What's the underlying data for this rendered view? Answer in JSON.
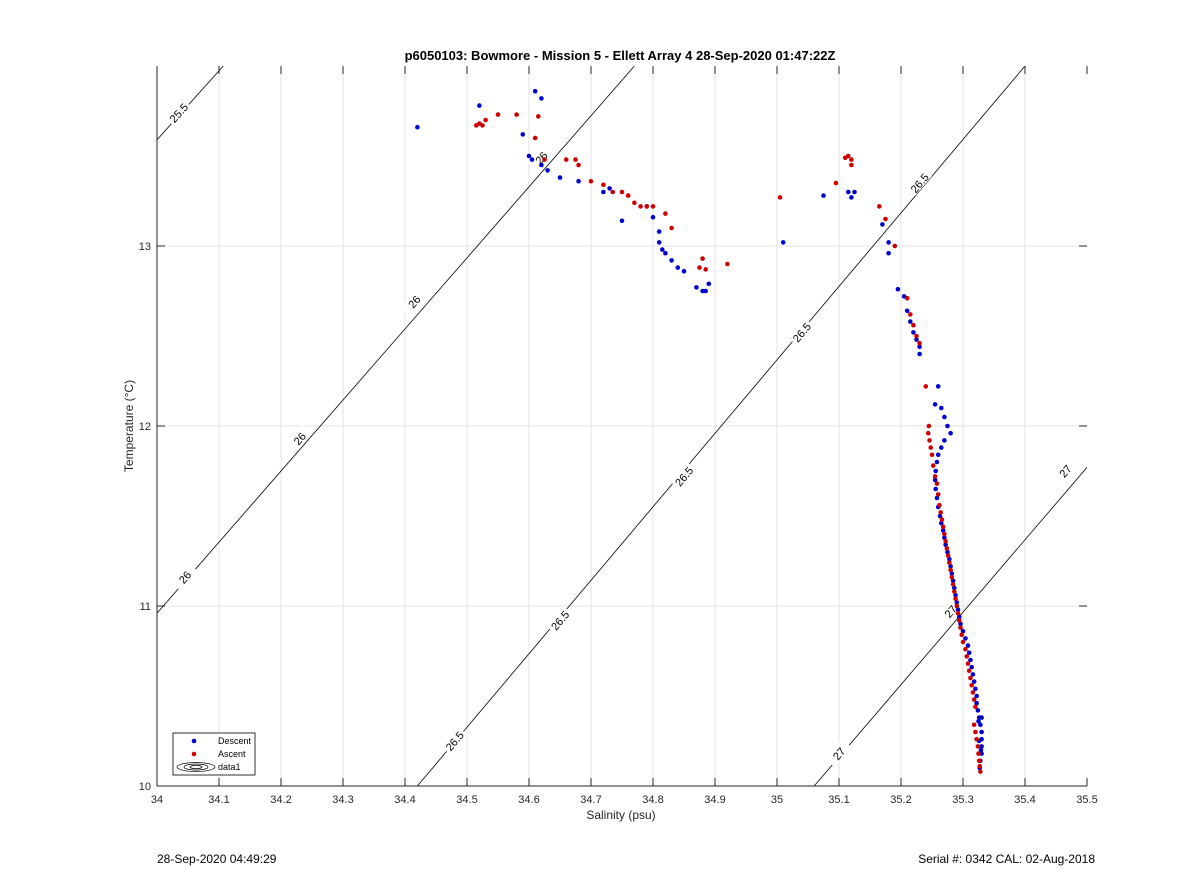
{
  "footer": {
    "timestamp": "28-Sep-2020 04:49:29",
    "serial_cal": "Serial #: 0342  CAL: 02-Aug-2018"
  },
  "chart_data": {
    "type": "scatter",
    "title": "p6050103: Bowmore - Mission 5 - Ellett Array 4 28-Sep-2020 01:47:22Z",
    "xlabel": "Salinity (psu)",
    "ylabel": "Temperature (°C)",
    "xlim": [
      34,
      35.5
    ],
    "ylim": [
      10,
      14
    ],
    "grid": true,
    "legend_location": "bottom-left",
    "xticks": [
      "34",
      "34.1",
      "34.2",
      "34.3",
      "34.4",
      "34.5",
      "34.6",
      "34.7",
      "34.8",
      "34.9",
      "35",
      "35.1",
      "35.2",
      "35.3",
      "35.4",
      "35.5"
    ],
    "yticks": [
      "10",
      "11",
      "12",
      "13"
    ],
    "legend": [
      "Descent",
      "Ascent",
      "data1"
    ],
    "series": [
      {
        "name": "Descent",
        "color": "#0000cc",
        "points": [
          [
            34.42,
            13.66
          ],
          [
            34.52,
            13.78
          ],
          [
            34.59,
            13.62
          ],
          [
            34.6,
            13.5
          ],
          [
            34.605,
            13.48
          ],
          [
            34.61,
            13.86
          ],
          [
            34.62,
            13.82
          ],
          [
            34.62,
            13.45
          ],
          [
            34.63,
            13.42
          ],
          [
            34.65,
            13.38
          ],
          [
            34.68,
            13.36
          ],
          [
            34.72,
            13.3
          ],
          [
            34.73,
            13.32
          ],
          [
            34.75,
            13.14
          ],
          [
            34.79,
            13.22
          ],
          [
            34.8,
            13.16
          ],
          [
            34.81,
            13.08
          ],
          [
            34.81,
            13.02
          ],
          [
            34.815,
            12.98
          ],
          [
            34.82,
            12.96
          ],
          [
            34.83,
            12.92
          ],
          [
            34.84,
            12.88
          ],
          [
            34.85,
            12.86
          ],
          [
            34.87,
            12.77
          ],
          [
            34.88,
            12.75
          ],
          [
            34.885,
            12.75
          ],
          [
            34.89,
            12.79
          ],
          [
            35.01,
            13.02
          ],
          [
            35.075,
            13.28
          ],
          [
            35.115,
            13.3
          ],
          [
            35.12,
            13.27
          ],
          [
            35.125,
            13.3
          ],
          [
            35.17,
            13.12
          ],
          [
            35.18,
            13.02
          ],
          [
            35.18,
            12.96
          ],
          [
            35.195,
            12.76
          ],
          [
            35.205,
            12.72
          ],
          [
            35.21,
            12.64
          ],
          [
            35.215,
            12.58
          ],
          [
            35.22,
            12.52
          ],
          [
            35.225,
            12.48
          ],
          [
            35.23,
            12.44
          ],
          [
            35.23,
            12.4
          ],
          [
            35.26,
            12.22
          ],
          [
            35.255,
            12.12
          ],
          [
            35.265,
            12.1
          ],
          [
            35.27,
            12.05
          ],
          [
            35.275,
            12.0
          ],
          [
            35.28,
            11.96
          ],
          [
            35.27,
            11.92
          ],
          [
            35.265,
            11.88
          ],
          [
            35.26,
            11.84
          ],
          [
            35.258,
            11.8
          ],
          [
            35.256,
            11.75
          ],
          [
            35.255,
            11.7
          ],
          [
            35.256,
            11.65
          ],
          [
            35.258,
            11.6
          ],
          [
            35.26,
            11.55
          ],
          [
            35.263,
            11.5
          ],
          [
            35.265,
            11.46
          ],
          [
            35.268,
            11.42
          ],
          [
            35.27,
            11.38
          ],
          [
            35.272,
            11.34
          ],
          [
            35.275,
            11.3
          ],
          [
            35.278,
            11.26
          ],
          [
            35.28,
            11.22
          ],
          [
            35.282,
            11.18
          ],
          [
            35.284,
            11.14
          ],
          [
            35.286,
            11.1
          ],
          [
            35.288,
            11.06
          ],
          [
            35.29,
            11.02
          ],
          [
            35.292,
            10.98
          ],
          [
            35.294,
            10.94
          ],
          [
            35.296,
            10.9
          ],
          [
            35.3,
            10.86
          ],
          [
            35.304,
            10.82
          ],
          [
            35.308,
            10.78
          ],
          [
            35.31,
            10.74
          ],
          [
            35.312,
            10.7
          ],
          [
            35.314,
            10.66
          ],
          [
            35.316,
            10.62
          ],
          [
            35.318,
            10.58
          ],
          [
            35.32,
            10.54
          ],
          [
            35.322,
            10.5
          ],
          [
            35.322,
            10.46
          ],
          [
            35.324,
            10.42
          ],
          [
            35.326,
            10.38
          ],
          [
            35.328,
            10.34
          ],
          [
            35.33,
            10.3
          ],
          [
            35.33,
            10.26
          ],
          [
            35.33,
            10.22
          ],
          [
            35.33,
            10.18
          ],
          [
            35.328,
            10.14
          ],
          [
            35.327,
            10.1
          ],
          [
            35.33,
            10.38
          ],
          [
            35.325,
            10.36
          ],
          [
            35.329,
            10.2
          ],
          [
            35.326,
            10.25
          ]
        ]
      },
      {
        "name": "Ascent",
        "color": "#cc0000",
        "points": [
          [
            34.515,
            13.67
          ],
          [
            34.52,
            13.68
          ],
          [
            34.525,
            13.67
          ],
          [
            34.53,
            13.7
          ],
          [
            34.55,
            13.73
          ],
          [
            34.58,
            13.73
          ],
          [
            34.61,
            13.6
          ],
          [
            34.615,
            13.72
          ],
          [
            34.625,
            13.48
          ],
          [
            34.66,
            13.48
          ],
          [
            34.675,
            13.48
          ],
          [
            34.68,
            13.45
          ],
          [
            34.7,
            13.36
          ],
          [
            34.72,
            13.34
          ],
          [
            34.735,
            13.3
          ],
          [
            34.75,
            13.3
          ],
          [
            34.76,
            13.28
          ],
          [
            34.77,
            13.24
          ],
          [
            34.78,
            13.22
          ],
          [
            34.79,
            13.22
          ],
          [
            34.8,
            13.22
          ],
          [
            34.82,
            13.18
          ],
          [
            34.83,
            13.1
          ],
          [
            34.875,
            12.88
          ],
          [
            34.88,
            12.93
          ],
          [
            34.885,
            12.87
          ],
          [
            34.92,
            12.9
          ],
          [
            35.005,
            13.27
          ],
          [
            35.095,
            13.35
          ],
          [
            35.11,
            13.49
          ],
          [
            35.115,
            13.5
          ],
          [
            35.12,
            13.48
          ],
          [
            35.12,
            13.45
          ],
          [
            35.165,
            13.22
          ],
          [
            35.175,
            13.15
          ],
          [
            35.19,
            13.0
          ],
          [
            35.21,
            12.71
          ],
          [
            35.215,
            12.62
          ],
          [
            35.22,
            12.56
          ],
          [
            35.225,
            12.5
          ],
          [
            35.23,
            12.46
          ],
          [
            35.24,
            12.22
          ],
          [
            35.245,
            12.0
          ],
          [
            35.244,
            11.96
          ],
          [
            35.246,
            11.92
          ],
          [
            35.248,
            11.88
          ],
          [
            35.25,
            11.84
          ],
          [
            35.252,
            11.78
          ],
          [
            35.255,
            11.72
          ],
          [
            35.258,
            11.68
          ],
          [
            35.26,
            11.62
          ],
          [
            35.262,
            11.56
          ],
          [
            35.264,
            11.52
          ],
          [
            35.266,
            11.48
          ],
          [
            35.268,
            11.44
          ],
          [
            35.27,
            11.4
          ],
          [
            35.272,
            11.36
          ],
          [
            35.274,
            11.32
          ],
          [
            35.276,
            11.28
          ],
          [
            35.278,
            11.24
          ],
          [
            35.28,
            11.2
          ],
          [
            35.282,
            11.16
          ],
          [
            35.284,
            11.12
          ],
          [
            35.286,
            11.08
          ],
          [
            35.288,
            11.04
          ],
          [
            35.29,
            11.0
          ],
          [
            35.292,
            10.96
          ],
          [
            35.294,
            10.92
          ],
          [
            35.296,
            10.88
          ],
          [
            35.298,
            10.84
          ],
          [
            35.3,
            10.8
          ],
          [
            35.304,
            10.76
          ],
          [
            35.306,
            10.72
          ],
          [
            35.308,
            10.68
          ],
          [
            35.31,
            10.64
          ],
          [
            35.312,
            10.6
          ],
          [
            35.314,
            10.56
          ],
          [
            35.316,
            10.52
          ],
          [
            35.318,
            10.48
          ],
          [
            35.32,
            10.44
          ],
          [
            35.318,
            10.34
          ],
          [
            35.32,
            10.3
          ],
          [
            35.322,
            10.26
          ],
          [
            35.324,
            10.22
          ],
          [
            35.325,
            10.18
          ],
          [
            35.326,
            10.14
          ],
          [
            35.327,
            10.11
          ],
          [
            35.328,
            10.08
          ]
        ]
      }
    ],
    "density_contours": [
      {
        "sigma": "25.5",
        "start": [
          34.0,
          13.59
        ],
        "end": [
          34.107,
          14.0
        ],
        "labels": [
          {
            "text": "25.5",
            "at": [
              34.035,
              13.74
            ]
          }
        ]
      },
      {
        "sigma": "26",
        "start": [
          34.0,
          10.96
        ],
        "end": [
          34.77,
          14.0
        ],
        "labels": [
          {
            "text": "26",
            "at": [
              34.045,
              11.16
            ]
          },
          {
            "text": "26",
            "at": [
              34.23,
              11.93
            ]
          },
          {
            "text": "26",
            "at": [
              34.415,
              12.69
            ]
          },
          {
            "text": "26",
            "at": [
              34.62,
              13.49
            ]
          }
        ]
      },
      {
        "sigma": "26.5",
        "start": [
          34.42,
          10.0
        ],
        "end": [
          35.4,
          14.0
        ],
        "labels": [
          {
            "text": "26.5",
            "at": [
              34.48,
              10.25
            ]
          },
          {
            "text": "26.5",
            "at": [
              34.65,
              10.92
            ]
          },
          {
            "text": "26.5",
            "at": [
              34.85,
              11.72
            ]
          },
          {
            "text": "26.5",
            "at": [
              35.04,
              12.52
            ]
          },
          {
            "text": "26.5",
            "at": [
              35.23,
              13.35
            ]
          }
        ]
      },
      {
        "sigma": "27",
        "start": [
          35.06,
          10.0
        ],
        "end": [
          35.5,
          11.77
        ],
        "labels": [
          {
            "text": "27",
            "at": [
              35.1,
              10.18
            ]
          },
          {
            "text": "27",
            "at": [
              35.28,
              10.97
            ]
          },
          {
            "text": "27",
            "at": [
              35.465,
              11.75
            ]
          }
        ]
      }
    ]
  }
}
